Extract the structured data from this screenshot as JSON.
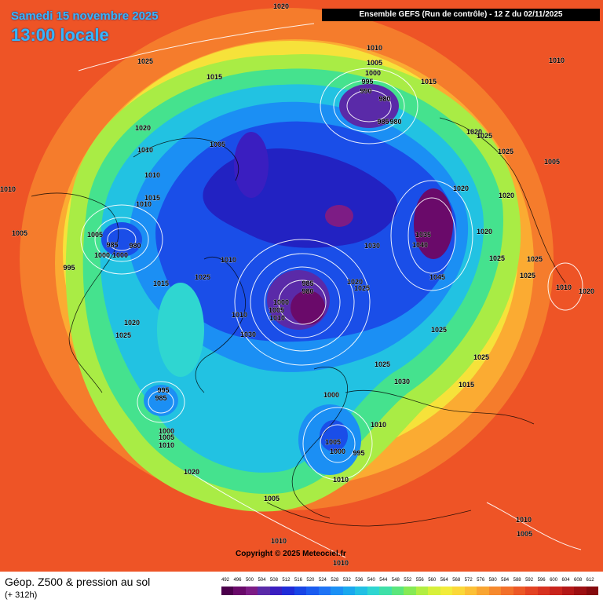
{
  "header": {
    "date": "Samedi 15 novembre 2025",
    "local_time": "13:00 locale",
    "run_info": "Ensemble GEFS  (Run de contrôle)  -  12 Z du 02/11/2025"
  },
  "copyright": "Copyright © 2025 Meteociel.fr",
  "footer": {
    "field_title": "Géop. Z500 & pression au sol",
    "lead_time": "(+ 312h)"
  },
  "legend": {
    "ticks": [
      "492",
      "496",
      "500",
      "504",
      "508",
      "512",
      "516",
      "520",
      "524",
      "528",
      "532",
      "536",
      "540",
      "544",
      "548",
      "552",
      "556",
      "560",
      "564",
      "568",
      "572",
      "576",
      "580",
      "584",
      "588",
      "592",
      "596",
      "600",
      "604",
      "608",
      "612"
    ],
    "colors": [
      "#4b004b",
      "#6a0a6a",
      "#7d1c85",
      "#5a2aa8",
      "#3a1ec0",
      "#1f2bd8",
      "#1845e6",
      "#1a5cf0",
      "#1f74f5",
      "#1b90f5",
      "#1aa8ee",
      "#22c0e4",
      "#2fd6d1",
      "#3fe0a8",
      "#5ae67c",
      "#86ea55",
      "#b2ee42",
      "#d7f03a",
      "#f2ec3a",
      "#fbd838",
      "#fcc036",
      "#f9a532",
      "#f6892d",
      "#f2702a",
      "#ec5826",
      "#e34323",
      "#d73220",
      "#c8241c",
      "#b31717",
      "#9c0f12",
      "#84090d"
    ]
  },
  "pressure_labels": [
    {
      "text": "1020",
      "region": "north-top"
    },
    {
      "text": "1025",
      "region": "pacific-west"
    },
    {
      "text": "1015",
      "region": "alaska"
    },
    {
      "text": "1010",
      "region": "siberia-north"
    },
    {
      "text": "1005",
      "region": "siberia-north"
    },
    {
      "text": "1000",
      "region": "siberia-north"
    },
    {
      "text": "995",
      "region": "siberia-north"
    },
    {
      "text": "990",
      "region": "siberia-north"
    },
    {
      "text": "980",
      "region": "siberia-north"
    },
    {
      "text": "985",
      "region": "siberia-north"
    },
    {
      "text": "980",
      "region": "siberia-north"
    },
    {
      "text": "1015",
      "region": "siberia"
    },
    {
      "text": "1010",
      "region": "east-edge"
    },
    {
      "text": "1020",
      "region": "pacific"
    },
    {
      "text": "1010",
      "region": "pacific"
    },
    {
      "text": "1005",
      "region": "canada-north"
    },
    {
      "text": "1010",
      "region": "canada"
    },
    {
      "text": "1015",
      "region": "canada"
    },
    {
      "text": "1010",
      "region": "canada"
    },
    {
      "text": "1010",
      "region": "west-edge"
    },
    {
      "text": "1005",
      "region": "west-edge"
    },
    {
      "text": "1005",
      "region": "canada"
    },
    {
      "text": "985",
      "region": "canada-low"
    },
    {
      "text": "980",
      "region": "canada-low"
    },
    {
      "text": "1000",
      "region": "canada-low"
    },
    {
      "text": "1000",
      "region": "canada-low"
    },
    {
      "text": "1010",
      "region": "canada"
    },
    {
      "text": "995",
      "region": "usa-west"
    },
    {
      "text": "1015",
      "region": "hudson"
    },
    {
      "text": "1025",
      "region": "hudson"
    },
    {
      "text": "1010",
      "region": "greenland-west"
    },
    {
      "text": "1020",
      "region": "usa-east"
    },
    {
      "text": "1025",
      "region": "usa-east"
    },
    {
      "text": "995",
      "region": "atlantic-west"
    },
    {
      "text": "985",
      "region": "atlantic-west"
    },
    {
      "text": "1000",
      "region": "atlantic-west"
    },
    {
      "text": "1005",
      "region": "atlantic-west"
    },
    {
      "text": "1010",
      "region": "atlantic-west"
    },
    {
      "text": "1020",
      "region": "atlantic"
    },
    {
      "text": "1005",
      "region": "atlantic-south"
    },
    {
      "text": "1010",
      "region": "africa-north"
    },
    {
      "text": "1010",
      "region": "south-edge"
    },
    {
      "text": "985",
      "region": "iceland-low"
    },
    {
      "text": "980",
      "region": "iceland-low"
    },
    {
      "text": "1000",
      "region": "iceland-low"
    },
    {
      "text": "1005",
      "region": "iceland-low"
    },
    {
      "text": "1010",
      "region": "iceland-low"
    },
    {
      "text": "1030",
      "region": "greenland"
    },
    {
      "text": "1020",
      "region": "norwegian-sea"
    },
    {
      "text": "1025",
      "region": "norwegian-sea"
    },
    {
      "text": "1030",
      "region": "arctic-ocean"
    },
    {
      "text": "1035",
      "region": "kara-high"
    },
    {
      "text": "1040",
      "region": "kara-high"
    },
    {
      "text": "1045",
      "region": "kara-high"
    },
    {
      "text": "1020",
      "region": "russia-north"
    },
    {
      "text": "1020",
      "region": "russia"
    },
    {
      "text": "1025",
      "region": "russia"
    },
    {
      "text": "1025",
      "region": "siberia"
    },
    {
      "text": "1025",
      "region": "siberia"
    },
    {
      "text": "1020",
      "region": "siberia"
    },
    {
      "text": "1020",
      "region": "siberia"
    },
    {
      "text": "1025",
      "region": "siberia"
    },
    {
      "text": "1025",
      "region": "siberia"
    },
    {
      "text": "1005",
      "region": "asia-east"
    },
    {
      "text": "1010",
      "region": "asia-east"
    },
    {
      "text": "1020",
      "region": "russia"
    },
    {
      "text": "1025",
      "region": "russia"
    },
    {
      "text": "1025",
      "region": "russia"
    },
    {
      "text": "1015",
      "region": "scandinavia"
    },
    {
      "text": "1030",
      "region": "russia"
    },
    {
      "text": "1025",
      "region": "scandinavia"
    },
    {
      "text": "1000",
      "region": "europe"
    },
    {
      "text": "1010",
      "region": "europe"
    },
    {
      "text": "1005",
      "region": "europe"
    },
    {
      "text": "1000",
      "region": "europe"
    },
    {
      "text": "995",
      "region": "europe"
    },
    {
      "text": "1010",
      "region": "asia-south"
    },
    {
      "text": "1010",
      "region": "asia-south"
    },
    {
      "text": "1005",
      "region": "asia-south"
    }
  ]
}
